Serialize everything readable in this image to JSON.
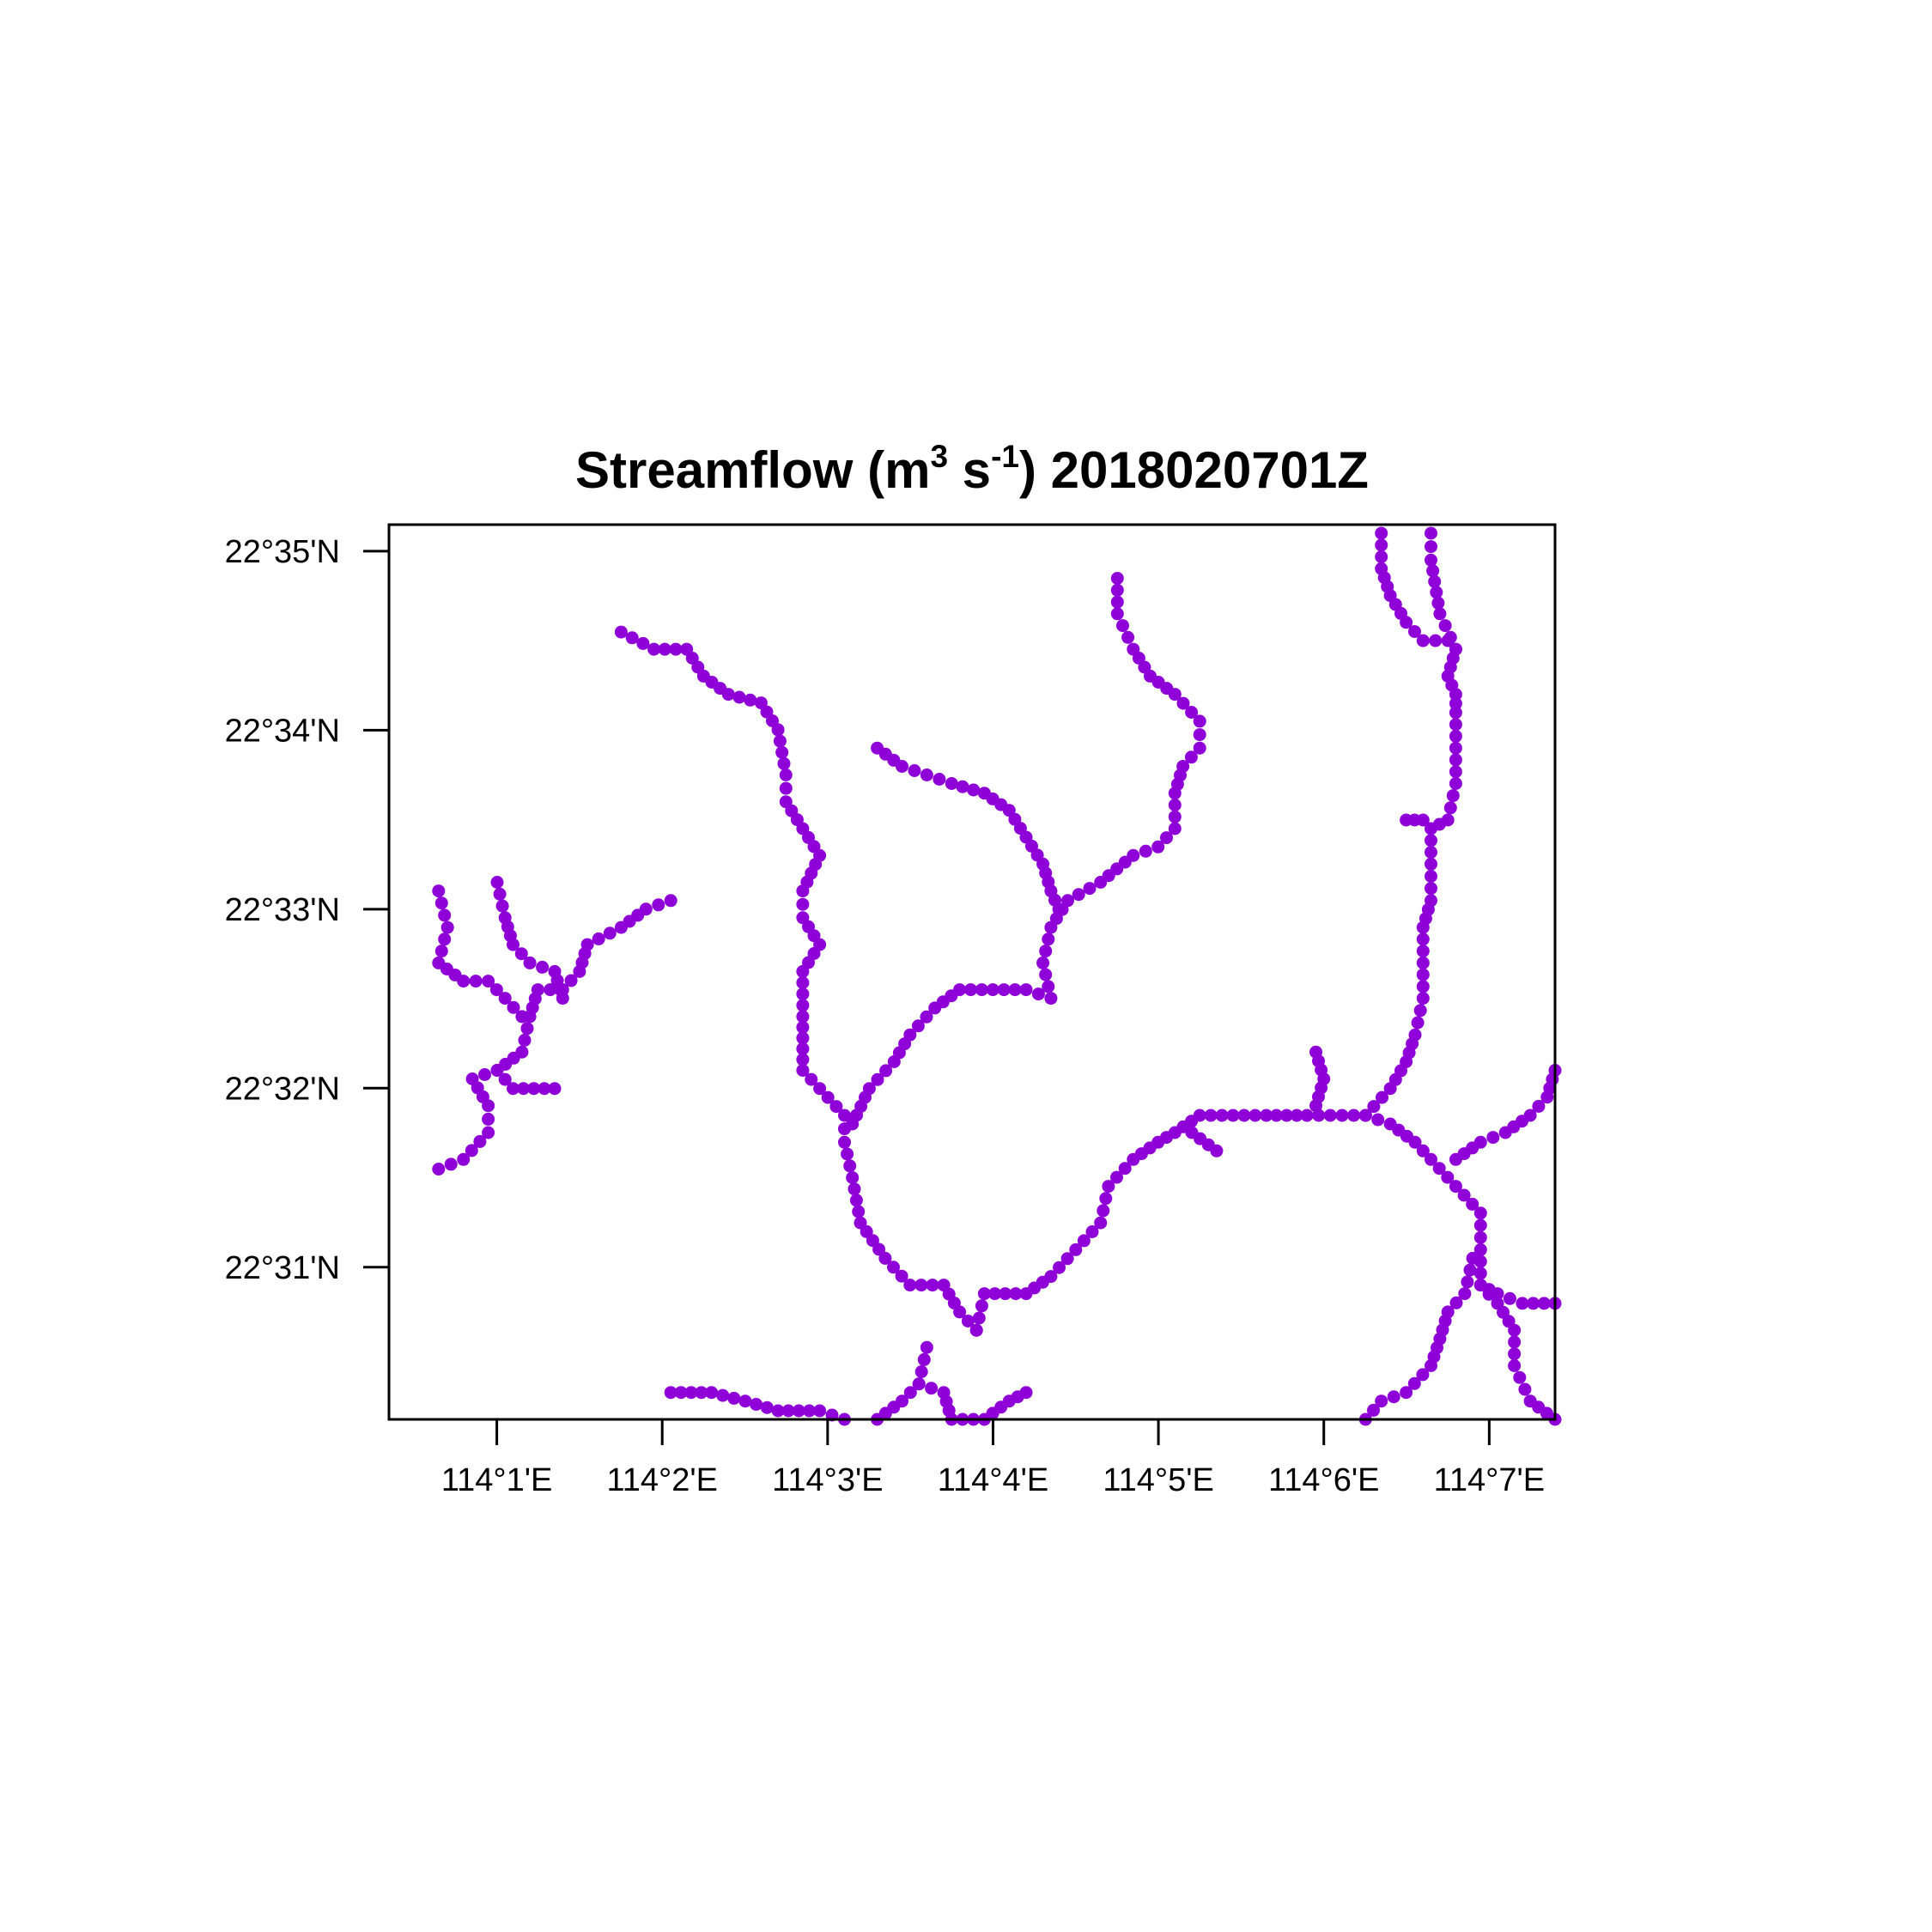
{
  "title": {
    "prefix": "Streamflow (m",
    "sup1": "3",
    "mid": " s",
    "sup2": "-1",
    "suffix": ")  2018020701Z"
  },
  "map": {
    "lon_range": [
      114.0058,
      114.1233
    ],
    "lat_range": [
      22.5025,
      22.5858
    ],
    "point_color": "#8f00d8",
    "x_ticks": [
      {
        "value": 114.016667,
        "label": "114°1'E"
      },
      {
        "value": 114.033333,
        "label": "114°2'E"
      },
      {
        "value": 114.05,
        "label": "114°3'E"
      },
      {
        "value": 114.066667,
        "label": "114°4'E"
      },
      {
        "value": 114.083333,
        "label": "114°5'E"
      },
      {
        "value": 114.1,
        "label": "114°6'E"
      },
      {
        "value": 114.116667,
        "label": "114°7'E"
      }
    ],
    "y_ticks": [
      {
        "value": 22.583333,
        "label": "22°35'N"
      },
      {
        "value": 22.566667,
        "label": "22°34'N"
      },
      {
        "value": 22.55,
        "label": "22°33'N"
      },
      {
        "value": 22.533333,
        "label": "22°32'N"
      },
      {
        "value": 22.516667,
        "label": "22°31'N"
      }
    ],
    "streams": [
      [
        [
          114.0108,
          22.5258
        ],
        [
          114.0133,
          22.5267
        ],
        [
          114.0158,
          22.5292
        ],
        [
          114.0158,
          22.5317
        ],
        [
          114.0142,
          22.5342
        ],
        [
          114.0167,
          22.535
        ],
        [
          114.0192,
          22.5367
        ],
        [
          114.02,
          22.54
        ],
        [
          114.0208,
          22.5425
        ],
        [
          114.0233,
          22.5425
        ],
        [
          114.025,
          22.5442
        ],
        [
          114.0258,
          22.5467
        ],
        [
          114.0292,
          22.5483
        ],
        [
          114.0317,
          22.55
        ],
        [
          114.0342,
          22.5508
        ]
      ],
      [
        [
          114.0108,
          22.5517
        ],
        [
          114.0117,
          22.5483
        ],
        [
          114.0108,
          22.545
        ],
        [
          114.0133,
          22.5433
        ],
        [
          114.0158,
          22.5433
        ],
        [
          114.0175,
          22.5417
        ],
        [
          114.0192,
          22.54
        ]
      ],
      [
        [
          114.0167,
          22.5525
        ],
        [
          114.0175,
          22.5492
        ],
        [
          114.0183,
          22.5467
        ],
        [
          114.02,
          22.545
        ],
        [
          114.0225,
          22.5442
        ],
        [
          114.0233,
          22.5417
        ]
      ],
      [
        [
          114.0167,
          22.535
        ],
        [
          114.0183,
          22.5333
        ],
        [
          114.0225,
          22.5333
        ]
      ],
      [
        [
          114.0292,
          22.5758
        ],
        [
          114.0325,
          22.5742
        ],
        [
          114.0358,
          22.5742
        ],
        [
          114.0375,
          22.5717
        ],
        [
          114.04,
          22.57
        ],
        [
          114.0433,
          22.5692
        ],
        [
          114.045,
          22.5667
        ],
        [
          114.0458,
          22.5625
        ],
        [
          114.0458,
          22.56
        ],
        [
          114.0475,
          22.5575
        ],
        [
          114.0492,
          22.555
        ],
        [
          114.0475,
          22.5517
        ],
        [
          114.0475,
          22.5492
        ],
        [
          114.0492,
          22.5467
        ],
        [
          114.0475,
          22.5442
        ],
        [
          114.0475,
          22.54
        ],
        [
          114.0475,
          22.535
        ],
        [
          114.0492,
          22.5333
        ],
        [
          114.0517,
          22.5308
        ],
        [
          114.0517,
          22.5283
        ],
        [
          114.0525,
          22.525
        ],
        [
          114.0533,
          22.5208
        ],
        [
          114.0558,
          22.5175
        ],
        [
          114.0583,
          22.515
        ],
        [
          114.0617,
          22.515
        ],
        [
          114.0633,
          22.5125
        ],
        [
          114.065,
          22.5108
        ]
      ],
      [
        [
          114.0525,
          22.53
        ],
        [
          114.0542,
          22.5333
        ],
        [
          114.0567,
          22.5358
        ],
        [
          114.0583,
          22.5383
        ],
        [
          114.0608,
          22.5408
        ],
        [
          114.0633,
          22.5425
        ],
        [
          114.07,
          22.5425
        ],
        [
          114.0725,
          22.5417
        ],
        [
          114.0717,
          22.545
        ],
        [
          114.0725,
          22.5483
        ],
        [
          114.0742,
          22.5508
        ],
        [
          114.0775,
          22.5525
        ],
        [
          114.0808,
          22.555
        ],
        [
          114.0833,
          22.5558
        ],
        [
          114.085,
          22.5575
        ],
        [
          114.085,
          22.5608
        ],
        [
          114.0858,
          22.5633
        ],
        [
          114.0875,
          22.565
        ],
        [
          114.0875,
          22.5675
        ],
        [
          114.085,
          22.57
        ],
        [
          114.0825,
          22.5717
        ],
        [
          114.0808,
          22.5742
        ],
        [
          114.0792,
          22.5775
        ],
        [
          114.0792,
          22.5808
        ]
      ],
      [
        [
          114.055,
          22.565
        ],
        [
          114.0575,
          22.5633
        ],
        [
          114.06,
          22.5625
        ],
        [
          114.0625,
          22.5617
        ],
        [
          114.0658,
          22.5608
        ],
        [
          114.0683,
          22.5592
        ],
        [
          114.07,
          22.5567
        ],
        [
          114.0717,
          22.5542
        ],
        [
          114.0725,
          22.5517
        ],
        [
          114.0733,
          22.55
        ]
      ],
      [
        [
          114.065,
          22.5108
        ],
        [
          114.0658,
          22.5142
        ],
        [
          114.07,
          22.5142
        ],
        [
          114.0725,
          22.5158
        ],
        [
          114.075,
          22.5183
        ],
        [
          114.0775,
          22.5208
        ],
        [
          114.0783,
          22.5242
        ],
        [
          114.0808,
          22.5267
        ],
        [
          114.0833,
          22.5283
        ],
        [
          114.085,
          22.5292
        ],
        [
          114.0875,
          22.5308
        ],
        [
          114.0942,
          22.5308
        ],
        [
          114.0983,
          22.5308
        ],
        [
          114.1042,
          22.5308
        ]
      ],
      [
        [
          114.0867,
          22.5292
        ],
        [
          114.0892,
          22.5275
        ]
      ],
      [
        [
          114.0992,
          22.5367
        ],
        [
          114.1,
          22.5342
        ],
        [
          114.0992,
          22.5317
        ]
      ],
      [
        [
          114.1042,
          22.5308
        ],
        [
          114.1067,
          22.5333
        ],
        [
          114.1083,
          22.5358
        ],
        [
          114.1092,
          22.5383
        ],
        [
          114.11,
          22.5417
        ],
        [
          114.11,
          22.545
        ],
        [
          114.11,
          22.5483
        ],
        [
          114.1108,
          22.5508
        ],
        [
          114.1108,
          22.5542
        ],
        [
          114.1108,
          22.5575
        ],
        [
          114.1125,
          22.5583
        ],
        [
          114.1133,
          22.5617
        ],
        [
          114.1133,
          22.565
        ],
        [
          114.1133,
          22.5683
        ],
        [
          114.1133,
          22.57
        ],
        [
          114.1125,
          22.5717
        ],
        [
          114.1133,
          22.5742
        ],
        [
          114.1125,
          22.575
        ],
        [
          114.11,
          22.575
        ],
        [
          114.1083,
          22.5767
        ],
        [
          114.1067,
          22.5792
        ],
        [
          114.1058,
          22.5817
        ],
        [
          114.1058,
          22.585
        ]
      ],
      [
        [
          114.1133,
          22.5742
        ],
        [
          114.1117,
          22.5775
        ],
        [
          114.1108,
          22.5825
        ],
        [
          114.1108,
          22.585
        ]
      ],
      [
        [
          114.11,
          22.5583
        ],
        [
          114.1083,
          22.5583
        ]
      ],
      [
        [
          114.1042,
          22.5308
        ],
        [
          114.1067,
          22.53
        ],
        [
          114.1092,
          22.5283
        ],
        [
          114.1108,
          22.5267
        ],
        [
          114.1133,
          22.5242
        ],
        [
          114.1158,
          22.5217
        ],
        [
          114.1158,
          22.5183
        ],
        [
          114.1158,
          22.515
        ],
        [
          114.1175,
          22.5133
        ],
        [
          114.1192,
          22.5108
        ],
        [
          114.1192,
          22.5075
        ],
        [
          114.1208,
          22.5042
        ],
        [
          114.1233,
          22.5025
        ]
      ],
      [
        [
          114.1133,
          22.5267
        ],
        [
          114.1158,
          22.5283
        ],
        [
          114.1183,
          22.5292
        ],
        [
          114.1208,
          22.5308
        ],
        [
          114.1225,
          22.5325
        ],
        [
          114.1233,
          22.535
        ]
      ],
      [
        [
          114.1158,
          22.515
        ],
        [
          114.1175,
          22.5142
        ],
        [
          114.12,
          22.5133
        ],
        [
          114.1233,
          22.5133
        ]
      ],
      [
        [
          114.115,
          22.5175
        ],
        [
          114.1142,
          22.5142
        ],
        [
          114.1125,
          22.5125
        ],
        [
          114.1117,
          22.51
        ],
        [
          114.1108,
          22.5075
        ],
        [
          114.1083,
          22.505
        ],
        [
          114.1058,
          22.5042
        ],
        [
          114.1042,
          22.5025
        ]
      ],
      [
        [
          114.0342,
          22.505
        ],
        [
          114.0383,
          22.505
        ],
        [
          114.0417,
          22.5042
        ],
        [
          114.045,
          22.5033
        ],
        [
          114.0492,
          22.5033
        ],
        [
          114.0517,
          22.5025
        ]
      ],
      [
        [
          114.06,
          22.5092
        ],
        [
          114.0592,
          22.5058
        ],
        [
          114.0575,
          22.5042
        ],
        [
          114.055,
          22.5025
        ]
      ],
      [
        [
          114.0592,
          22.5058
        ],
        [
          114.0617,
          22.505
        ],
        [
          114.0625,
          22.5025
        ],
        [
          114.0658,
          22.5025
        ],
        [
          114.0683,
          22.5042
        ],
        [
          114.07,
          22.505
        ]
      ]
    ]
  }
}
